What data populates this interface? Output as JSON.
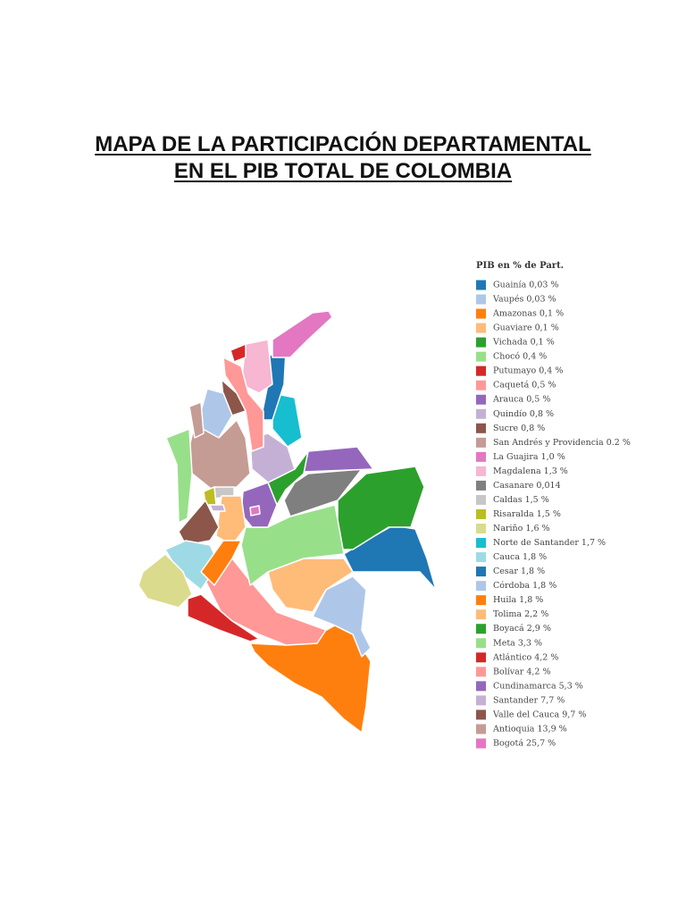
{
  "title": [
    "MAPA DE LA PARTICIPACIÓN DEPARTAMENTAL",
    "EN EL PIB TOTAL DE COLOMBIA"
  ],
  "legend": {
    "title": "PIB en % de Part.",
    "items": [
      {
        "label": "Guainía 0,03 %",
        "color": "#1f77b4"
      },
      {
        "label": "Vaupés 0,03 %",
        "color": "#aec7e8"
      },
      {
        "label": "Amazonas 0,1 %",
        "color": "#ff7f0e"
      },
      {
        "label": "Guaviare 0,1 %",
        "color": "#ffbb78"
      },
      {
        "label": "Vichada 0,1 %",
        "color": "#2ca02c"
      },
      {
        "label": "Chocó 0,4 %",
        "color": "#98df8a"
      },
      {
        "label": "Putumayo 0,4 %",
        "color": "#d62728"
      },
      {
        "label": "Caquetá 0,5 %",
        "color": "#ff9896"
      },
      {
        "label": "Arauca 0,5 %",
        "color": "#9467bd"
      },
      {
        "label": "Quindío 0,8 %",
        "color": "#c5b0d5"
      },
      {
        "label": "Sucre 0,8 %",
        "color": "#8c564b"
      },
      {
        "label": "San Andrés y Providencia 0.2 %",
        "color": "#c49c94"
      },
      {
        "label": "La Guajira 1,0 %",
        "color": "#e377c2"
      },
      {
        "label": "Magdalena 1,3 %",
        "color": "#f7b6d2"
      },
      {
        "label": "Casanare 0,014",
        "color": "#7f7f7f"
      },
      {
        "label": "Caldas 1,5 %",
        "color": "#c7c7c7"
      },
      {
        "label": "Risaralda 1,5 %",
        "color": "#bcbd22"
      },
      {
        "label": "Nariño 1,6 %",
        "color": "#dbdb8d"
      },
      {
        "label": "Norte de Santander 1,7 %",
        "color": "#17becf"
      },
      {
        "label": "Cauca 1,8 %",
        "color": "#9edae5"
      },
      {
        "label": "Cesar 1,8 %",
        "color": "#1f77b4"
      },
      {
        "label": "Córdoba 1,8 %",
        "color": "#aec7e8"
      },
      {
        "label": "Huila 1,8 %",
        "color": "#ff7f0e"
      },
      {
        "label": "Tolima 2,2 %",
        "color": "#ffbb78"
      },
      {
        "label": "Boyacá 2,9 %",
        "color": "#2ca02c"
      },
      {
        "label": "Meta 3,3 %",
        "color": "#98df8a"
      },
      {
        "label": "Atlántico 4,2 %",
        "color": "#d62728"
      },
      {
        "label": "Bolívar 4,2 %",
        "color": "#ff9896"
      },
      {
        "label": "Cundinamarca 5,3 %",
        "color": "#9467bd"
      },
      {
        "label": "Santander 7,7 %",
        "color": "#c5b0d5"
      },
      {
        "label": "Valle del Cauca 9,7 %",
        "color": "#8c564b"
      },
      {
        "label": "Antioquia 13,9 %",
        "color": "#c49c94"
      },
      {
        "label": "Bogotá 25,7 %",
        "color": "#e377c2"
      }
    ]
  }
}
